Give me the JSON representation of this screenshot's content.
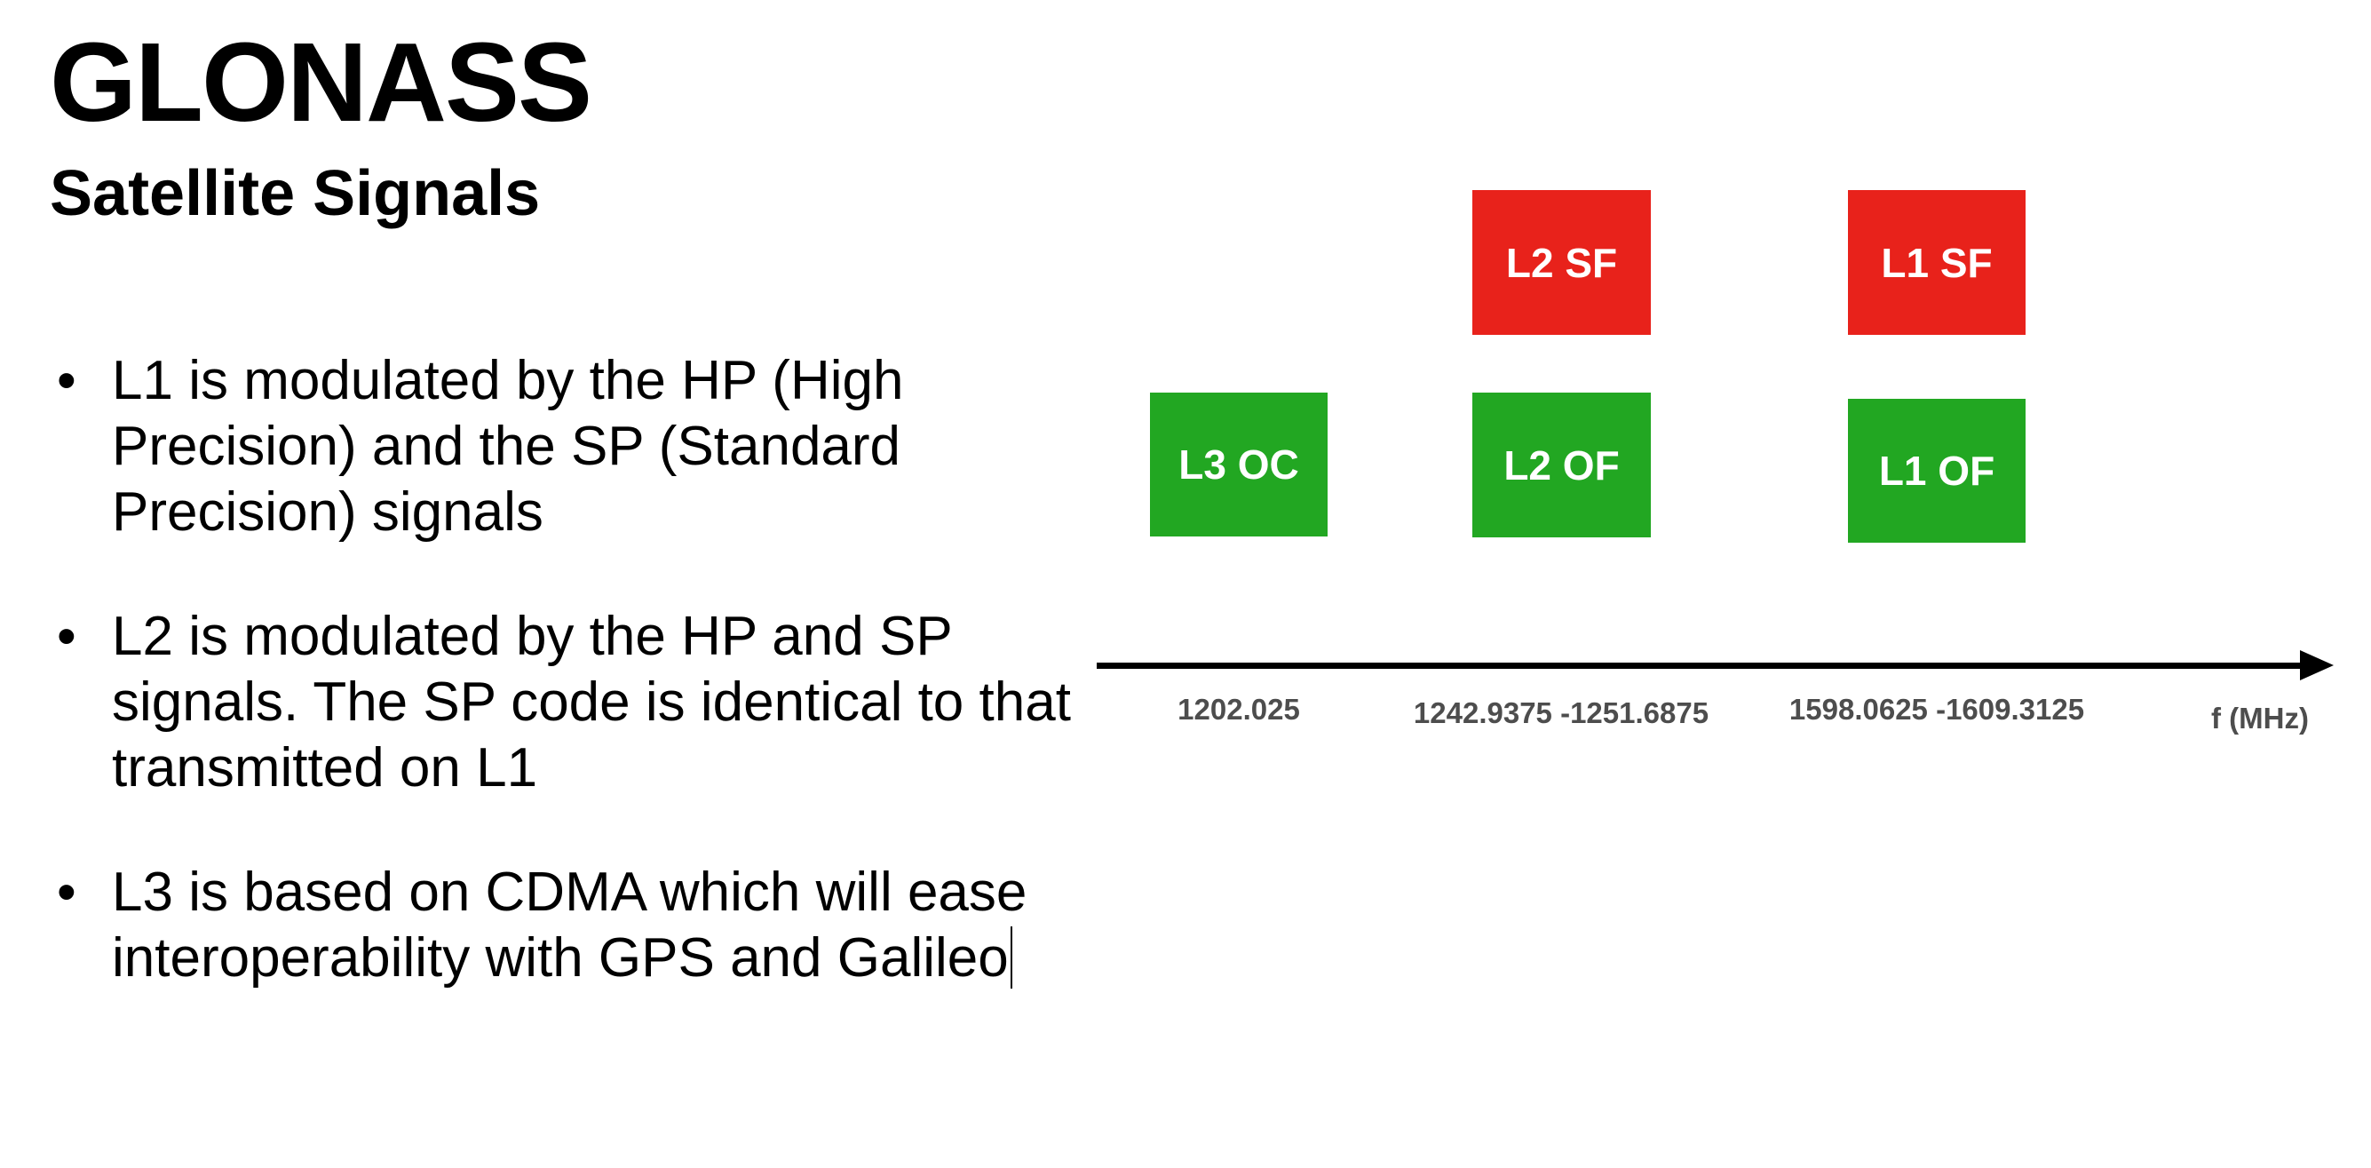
{
  "title": "GLONASS",
  "subtitle": "Satellite Signals",
  "bullets": [
    "L1 is modulated by the HP (High Precision) and the SP (Standard Precision) signals",
    "L2 is modulated by the HP and SP signals. The SP code is identical to that transmitted on L1",
    "L3 is based on CDMA which will ease interoperability with GPS and Galileo"
  ],
  "diagram": {
    "axis_unit": "f (MHz)",
    "colors": {
      "red": "#e8221b",
      "green": "#22a722",
      "label": "#4d4d4d"
    },
    "bands": [
      {
        "frequency_label": "1202.025",
        "signals": [
          {
            "label": "L3 OC",
            "color": "green"
          }
        ]
      },
      {
        "frequency_label": "1242.9375 -1251.6875",
        "signals": [
          {
            "label": "L2 SF",
            "color": "red"
          },
          {
            "label": "L2 OF",
            "color": "green"
          }
        ]
      },
      {
        "frequency_label": "1598.0625 -1609.3125",
        "signals": [
          {
            "label": "L1 SF",
            "color": "red"
          },
          {
            "label": "L1 OF",
            "color": "green"
          }
        ]
      }
    ]
  }
}
